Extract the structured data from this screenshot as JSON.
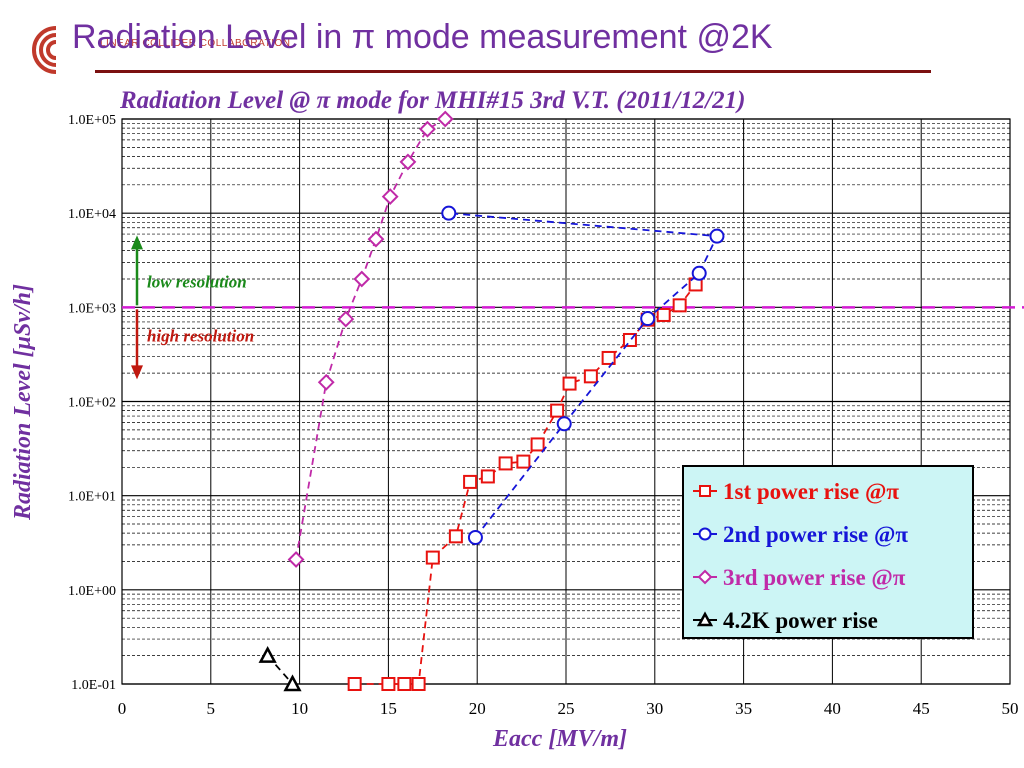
{
  "header": {
    "title": "Radiation Level in π mode measurement @2K",
    "logo_text": "LINEAR COLLIDER COLLABORATION"
  },
  "colors": {
    "title": "#7030a0",
    "rule": "#7b1010",
    "series1": "#e8120f",
    "series2": "#1515d8",
    "series3": "#c02aa8",
    "series4": "#000000",
    "threshold": "#d41cd4",
    "low_arrow": "#1a8a1a",
    "high_arrow": "#c0180f",
    "legend_bg": "#ccf5f5"
  },
  "chart_data": {
    "type": "scatter",
    "title": "Radiation Level @ π mode for MHI#15 3rd V.T. (2011/12/21)",
    "xlabel": "Eacc [MV/m]",
    "ylabel": "Radiation Level [μSv/h]",
    "xlim": [
      0,
      50
    ],
    "ylim": [
      0.1,
      100000
    ],
    "yscale": "log",
    "x_ticks": [
      "0",
      "5",
      "10",
      "15",
      "20",
      "25",
      "30",
      "35",
      "40",
      "45",
      "50"
    ],
    "y_ticks": [
      "1.0E-01",
      "1.0E+00",
      "1.0E+01",
      "1.0E+02",
      "1.0E+03",
      "1.0E+04",
      "1.0E+05"
    ],
    "grid": true,
    "legend_position": "bottom-right",
    "threshold_line": {
      "y": 1000
    },
    "annotations": [
      {
        "text": "low resolution"
      },
      {
        "text": "high resolution"
      }
    ],
    "series": [
      {
        "name": "1st power rise @π",
        "marker": "square",
        "x": [
          13.1,
          15.0,
          15.9,
          16.7,
          17.5,
          18.8,
          19.6,
          20.6,
          21.6,
          22.6,
          23.4,
          24.5,
          25.2,
          26.4,
          27.4,
          28.6,
          29.6,
          30.5,
          31.4,
          32.3
        ],
        "y": [
          0.1,
          0.1,
          0.1,
          0.1,
          2.2,
          3.7,
          14,
          16,
          22,
          23,
          35,
          80,
          155,
          185,
          290,
          450,
          740,
          830,
          1050,
          1750
        ]
      },
      {
        "name": "2nd power rise @π",
        "marker": "circle",
        "x": [
          19.9,
          24.9,
          29.6,
          32.5,
          33.5,
          18.4
        ],
        "y": [
          3.6,
          58,
          760,
          2300,
          5700,
          10000
        ]
      },
      {
        "name": "3rd power rise @π",
        "marker": "diamond",
        "x": [
          9.8,
          11.5,
          12.6,
          13.5,
          14.3,
          15.1,
          16.1,
          17.2,
          18.2
        ],
        "y": [
          2.1,
          160,
          750,
          2000,
          5300,
          15000,
          35000,
          78000,
          100000
        ]
      },
      {
        "name": "4.2K power rise",
        "marker": "triangle",
        "x": [
          8.2,
          9.6
        ],
        "y": [
          0.2,
          0.1
        ]
      }
    ]
  }
}
